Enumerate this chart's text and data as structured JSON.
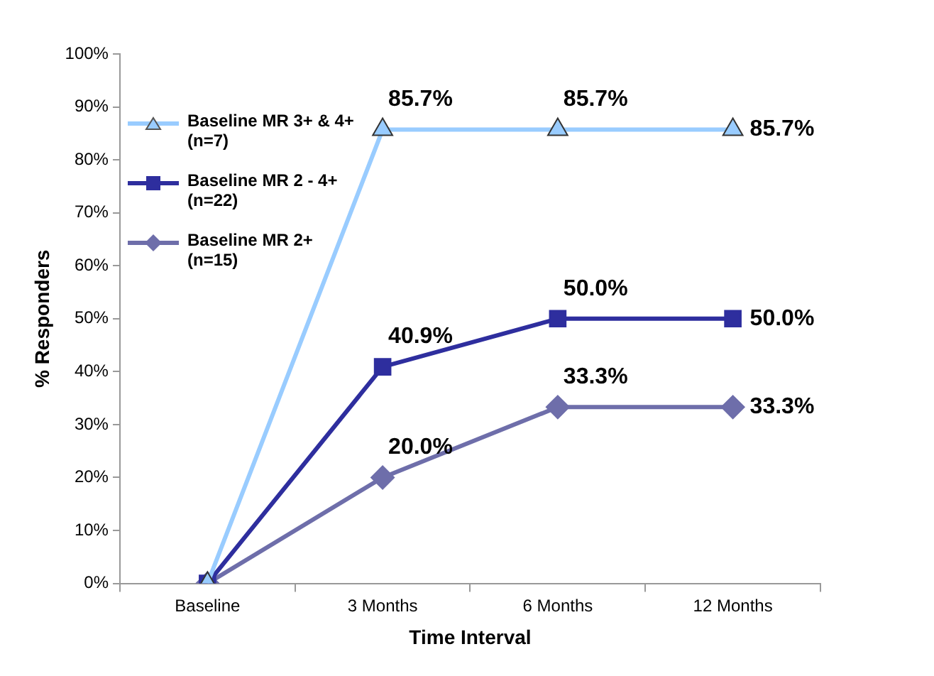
{
  "chart_data": {
    "type": "line",
    "xlabel": "Time Interval",
    "ylabel": "% Responders",
    "categories": [
      "Baseline",
      "3 Months",
      "6 Months",
      "12 Months"
    ],
    "ylim": [
      0,
      100
    ],
    "yticks": [
      {
        "value": 0,
        "label": "0%"
      },
      {
        "value": 10,
        "label": "10%"
      },
      {
        "value": 20,
        "label": "20%"
      },
      {
        "value": 30,
        "label": "30%"
      },
      {
        "value": 40,
        "label": "40%"
      },
      {
        "value": 50,
        "label": "50%"
      },
      {
        "value": 60,
        "label": "60%"
      },
      {
        "value": 70,
        "label": "70%"
      },
      {
        "value": 80,
        "label": "80%"
      },
      {
        "value": 90,
        "label": "90%"
      },
      {
        "value": 100,
        "label": "100%"
      }
    ],
    "grid": false,
    "legend": "top left",
    "line_style": "solid",
    "series": [
      {
        "name": "Baseline MR 3+ & 4+ (n=7)",
        "color": "#99ccff",
        "marker": "triangle",
        "values": [
          0,
          85.7,
          85.7,
          85.7
        ],
        "value_labels": [
          null,
          "85.7%",
          "85.7%",
          "85.7%"
        ]
      },
      {
        "name": "Baseline MR 2 - 4+ (n=22)",
        "color": "#2e2e9e",
        "marker": "square",
        "values": [
          0,
          40.9,
          50.0,
          50.0
        ],
        "value_labels": [
          null,
          "40.9%",
          "50.0%",
          "50.0%"
        ]
      },
      {
        "name": "Baseline MR 2+ (n=15)",
        "color": "#6e6eaa",
        "marker": "diamond",
        "values": [
          0,
          20.0,
          33.3,
          33.3
        ],
        "value_labels": [
          null,
          "20.0%",
          "33.3%",
          "33.3%"
        ]
      }
    ]
  }
}
